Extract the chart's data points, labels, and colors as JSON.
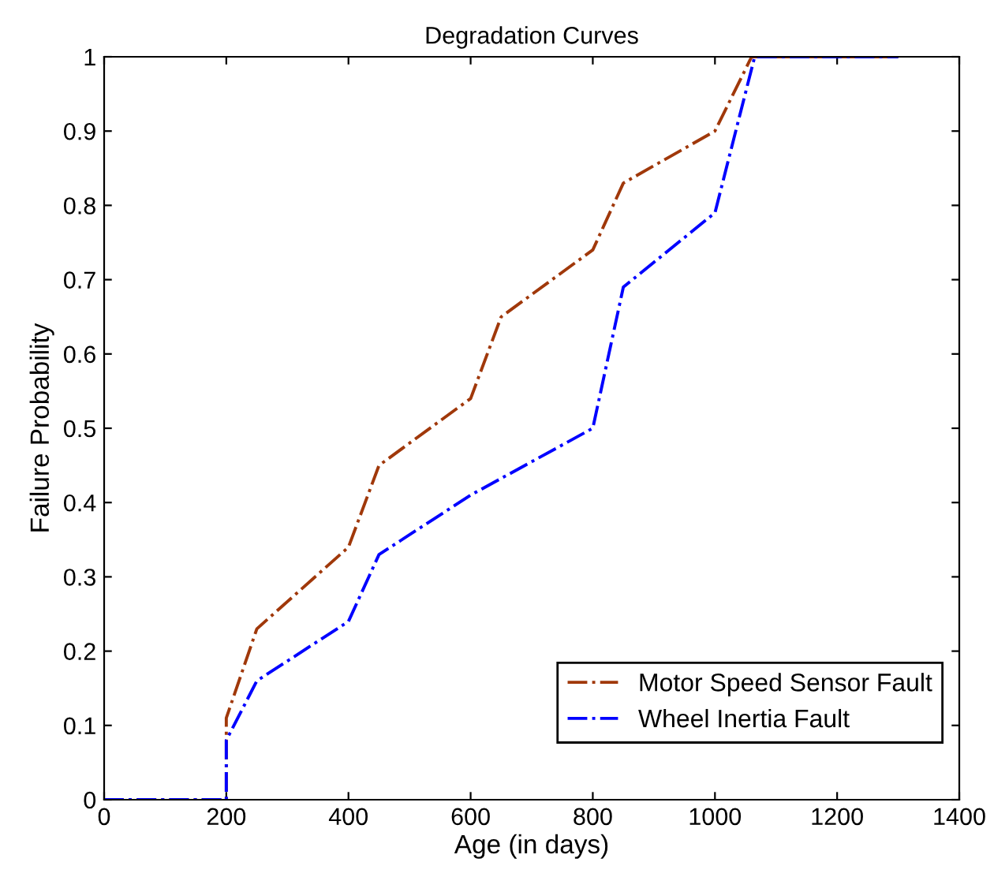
{
  "chart_data": {
    "type": "line",
    "title": "Degradation Curves",
    "xlabel": "Age (in days)",
    "ylabel": "Failure Probability",
    "series": [
      {
        "name": "Motor Speed Sensor Fault",
        "color": "#a0380a",
        "x": [
          0,
          200,
          200,
          250,
          400,
          450,
          600,
          650,
          800,
          850,
          1000,
          1060,
          1300
        ],
        "values": [
          0,
          0,
          0.11,
          0.23,
          0.34,
          0.45,
          0.54,
          0.65,
          0.74,
          0.83,
          0.9,
          1,
          1
        ]
      },
      {
        "name": "Wheel Inertia Fault",
        "color": "#0000ff",
        "x": [
          0,
          200,
          200,
          250,
          400,
          450,
          600,
          800,
          850,
          1000,
          1065,
          1300
        ],
        "values": [
          0,
          0,
          0.08,
          0.16,
          0.24,
          0.33,
          0.41,
          0.5,
          0.69,
          0.79,
          1,
          1
        ]
      }
    ],
    "xlim": [
      0,
      1400
    ],
    "xticks": [
      0,
      200,
      400,
      600,
      800,
      1000,
      1200,
      1400
    ],
    "ylim": [
      0,
      1
    ],
    "yticks": [
      0,
      0.1,
      0.2,
      0.3,
      0.4,
      0.5,
      0.6,
      0.7,
      0.8,
      0.9,
      1
    ],
    "grid": false,
    "legend": "bottom right",
    "line_style": "dashdot",
    "marker": "none"
  }
}
